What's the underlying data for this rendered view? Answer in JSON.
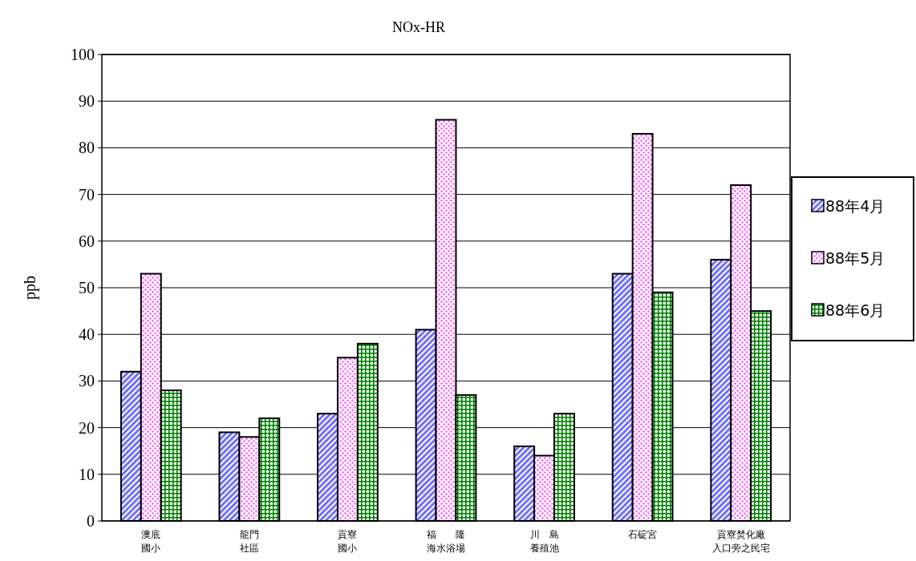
{
  "chart_data": {
    "type": "bar",
    "title": "NOx-HR",
    "ylabel": "ppb",
    "categories": [
      "澳底國小",
      "龍門社區",
      "貢寮國小",
      "福隆海水浴場",
      "川島養殖池",
      "石碇宮",
      "貢寮焚化廠入口旁之民宅"
    ],
    "series": [
      {
        "name": "88年4月",
        "color": "#7070ff",
        "values": [
          32,
          19,
          23,
          41,
          16,
          53,
          56
        ]
      },
      {
        "name": "88年5月",
        "color": "#ff55ff",
        "values": [
          53,
          18,
          35,
          86,
          14,
          83,
          72
        ]
      },
      {
        "name": "88年6月",
        "color": "#008000",
        "values": [
          28,
          22,
          38,
          27,
          23,
          49,
          45
        ]
      }
    ],
    "ylim": [
      0,
      100
    ],
    "yticks": [
      0,
      10,
      20,
      30,
      40,
      50,
      60,
      70,
      80,
      90,
      100
    ],
    "grid": "y",
    "legend": "right"
  }
}
